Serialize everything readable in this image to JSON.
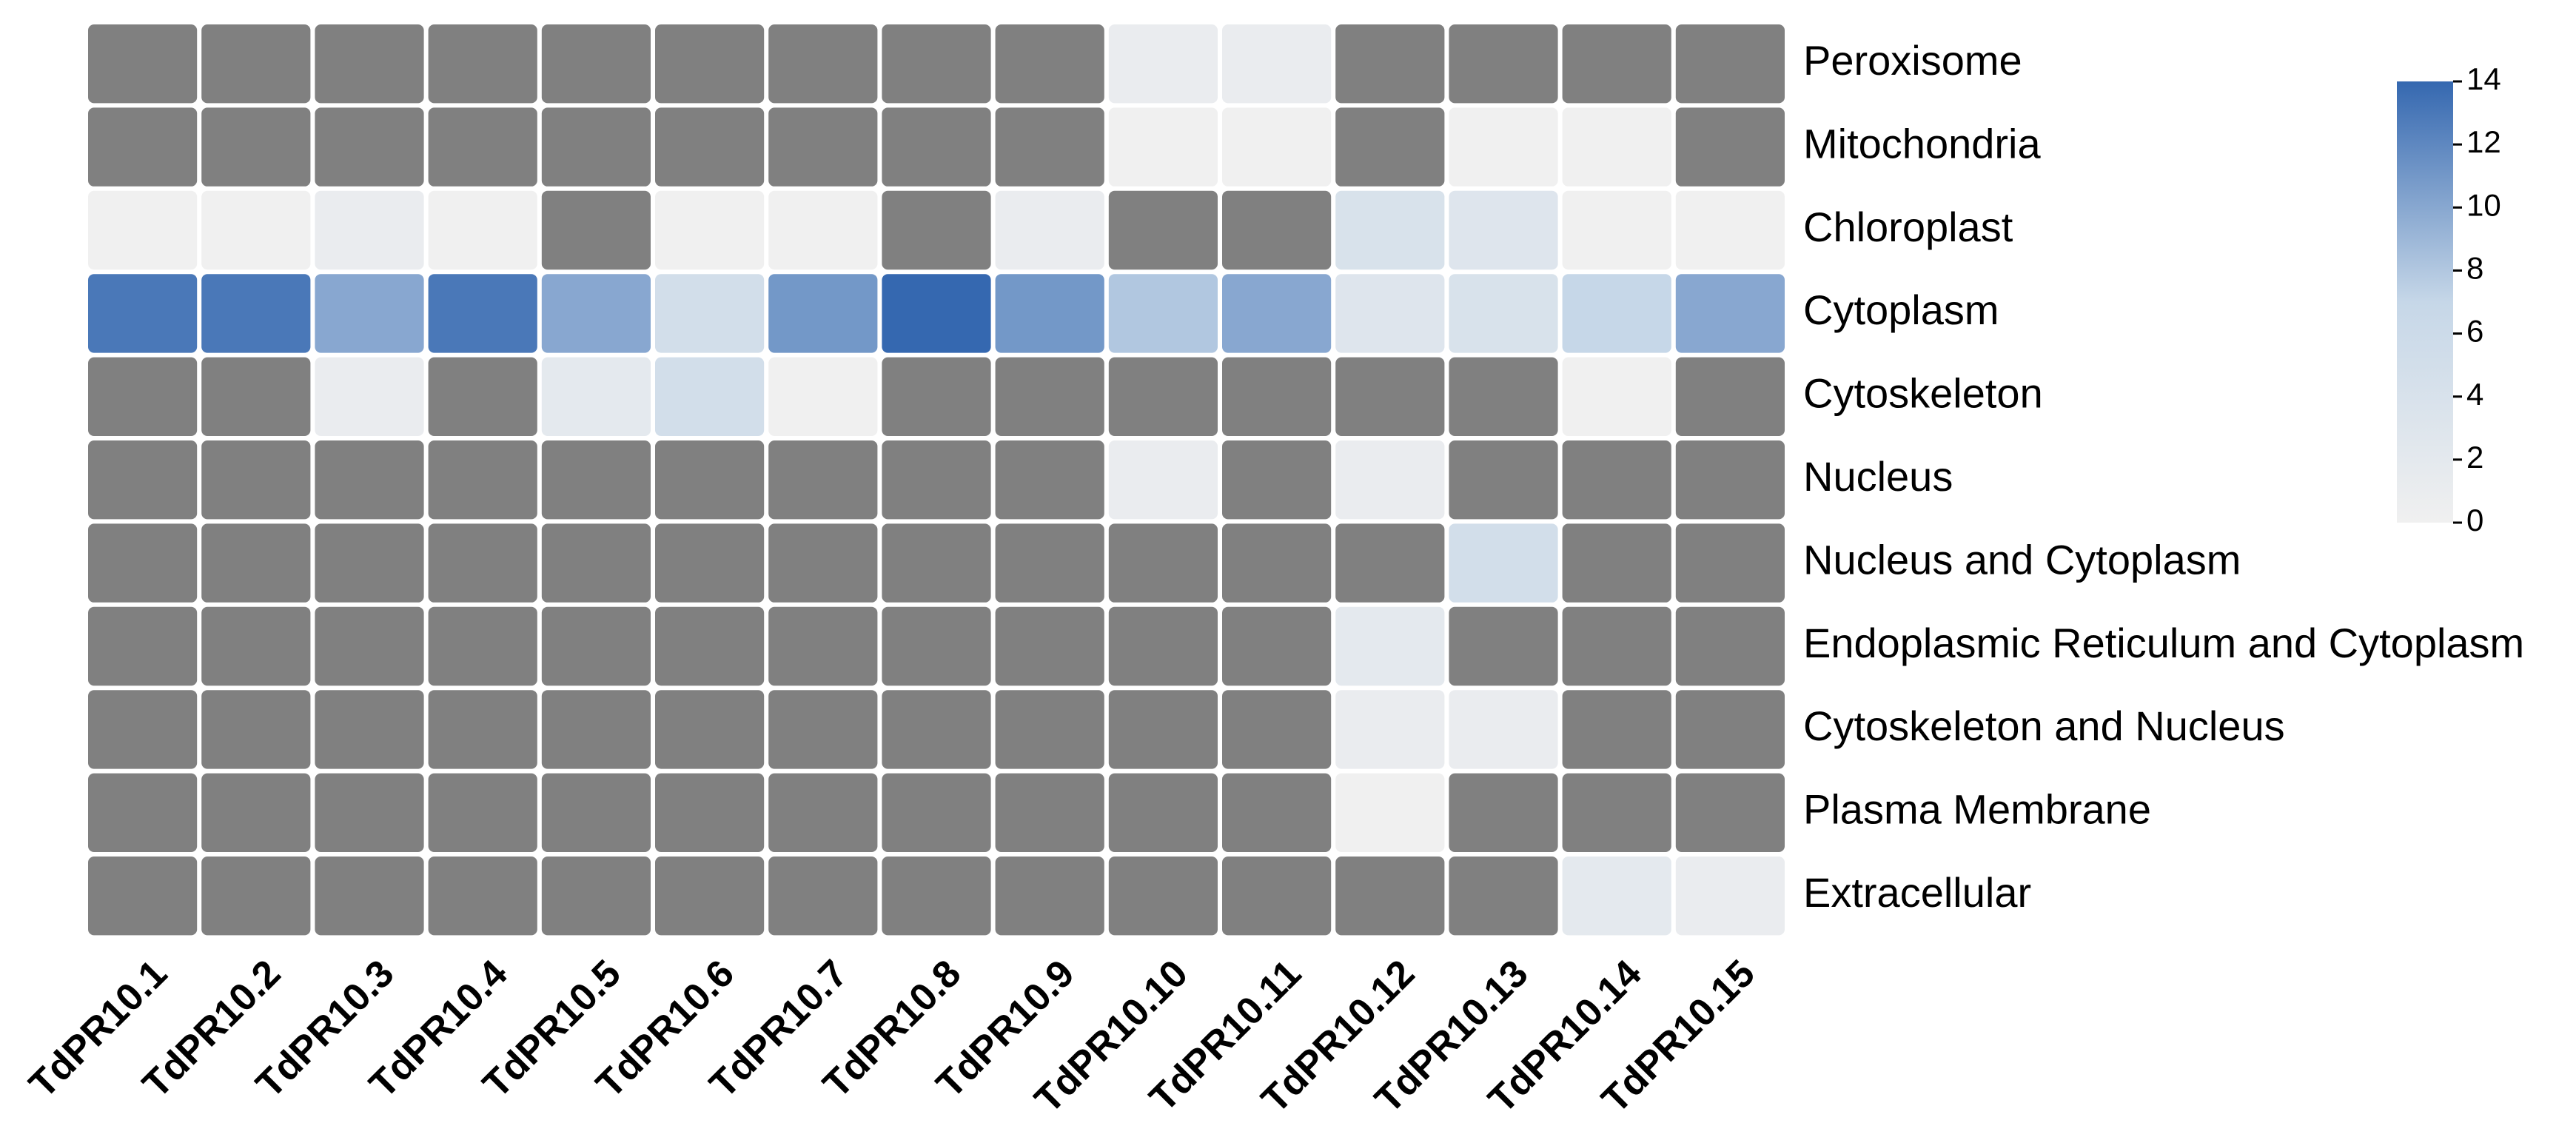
{
  "chart_data": {
    "type": "heatmap",
    "title": "",
    "xlabel": "",
    "ylabel": "",
    "columns": [
      "TdPR10.1",
      "TdPR10.2",
      "TdPR10.3",
      "TdPR10.4",
      "TdPR10.5",
      "TdPR10.6",
      "TdPR10.7",
      "TdPR10.8",
      "TdPR10.9",
      "TdPR10.10",
      "TdPR10.11",
      "TdPR10.12",
      "TdPR10.13",
      "TdPR10.14",
      "TdPR10.15"
    ],
    "rows": [
      "Peroxisome",
      "Mitochondria",
      "Chloroplast",
      "Cytoplasm",
      "Cytoskeleton",
      "Nucleus",
      "Nucleus and Cytoplasm",
      "Endoplasmic Reticulum and Cytoplasm",
      "Cytoskeleton and Nucleus",
      "Plasma Membrane",
      "Extracellular"
    ],
    "values": [
      [
        null,
        null,
        null,
        null,
        null,
        null,
        null,
        null,
        null,
        1,
        1,
        null,
        null,
        null,
        null
      ],
      [
        null,
        null,
        null,
        null,
        null,
        null,
        null,
        null,
        null,
        0,
        0,
        null,
        0,
        0,
        null
      ],
      [
        0,
        0,
        1,
        0,
        null,
        0,
        0,
        null,
        1,
        null,
        null,
        4,
        3,
        0,
        0
      ],
      [
        13,
        13,
        10,
        13,
        10,
        5,
        11,
        14,
        11,
        8,
        10,
        3,
        4,
        7,
        10
      ],
      [
        null,
        null,
        1,
        null,
        2,
        5,
        0,
        null,
        null,
        null,
        null,
        null,
        null,
        0,
        null
      ],
      [
        null,
        null,
        null,
        null,
        null,
        null,
        null,
        null,
        null,
        1,
        null,
        1,
        null,
        null,
        null
      ],
      [
        null,
        null,
        null,
        null,
        null,
        null,
        null,
        null,
        null,
        null,
        null,
        null,
        5,
        null,
        null
      ],
      [
        null,
        null,
        null,
        null,
        null,
        null,
        null,
        null,
        null,
        null,
        null,
        2,
        null,
        null,
        null
      ],
      [
        null,
        null,
        null,
        null,
        null,
        null,
        null,
        null,
        null,
        null,
        null,
        1,
        1,
        null,
        null
      ],
      [
        null,
        null,
        null,
        null,
        null,
        null,
        null,
        null,
        null,
        null,
        null,
        0,
        null,
        null,
        null
      ],
      [
        null,
        null,
        null,
        null,
        null,
        null,
        null,
        null,
        null,
        null,
        null,
        null,
        null,
        2,
        1
      ]
    ],
    "missing_color": "#808080",
    "colormap": {
      "low_color": "#f0f0f0",
      "mid_color": "#c6d7e8",
      "high_color": "#3568b0"
    },
    "colorbar": {
      "range": [
        0,
        14
      ],
      "ticks": [
        "0",
        "2",
        "4",
        "6",
        "8",
        "10",
        "12",
        "14"
      ],
      "placement": "right"
    },
    "grid": false
  }
}
